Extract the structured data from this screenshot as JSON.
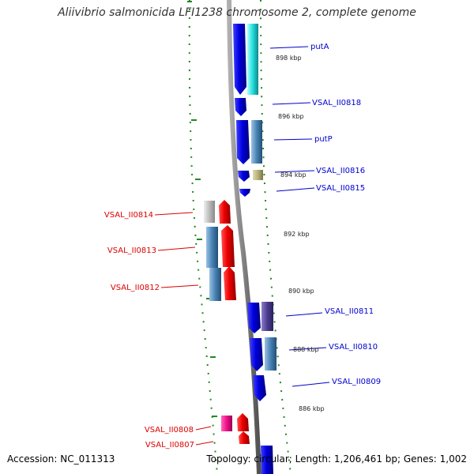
{
  "title": "Aliivibrio salmonicida LFI1238 chromosome 2, complete genome",
  "footer": {
    "accession": "Accession: NC_011313",
    "summary": "Topology: circular; Length: 1,206,461 bp; Genes: 1,002"
  },
  "colors": {
    "forward": "#0000dd",
    "reverse": "#ee0000",
    "reverse_pink": "#ee1188",
    "cyan": "#22dddd",
    "steel": "#4682b4",
    "purple": "#4b3c8c",
    "olive": "#b8b07a",
    "grey": "#b8b8b8",
    "backbone": "#808080",
    "dots": "#228822"
  },
  "ticks": [
    {
      "label": "898 kbp"
    },
    {
      "label": "896 kbp"
    },
    {
      "label": "894 kbp"
    },
    {
      "label": "892 kbp"
    },
    {
      "label": "890 kbp"
    },
    {
      "label": "888 kbp"
    },
    {
      "label": "886 kbp"
    }
  ],
  "genes_forward": [
    {
      "label": "putA"
    },
    {
      "label": "VSAL_II0818"
    },
    {
      "label": "putP"
    },
    {
      "label": "VSAL_II0816"
    },
    {
      "label": "VSAL_II0815"
    },
    {
      "label": "VSAL_II0811"
    },
    {
      "label": "VSAL_II0810"
    },
    {
      "label": "VSAL_II0809"
    }
  ],
  "genes_reverse": [
    {
      "label": "VSAL_II0814"
    },
    {
      "label": "VSAL_II0813"
    },
    {
      "label": "VSAL_II0812"
    },
    {
      "label": "VSAL_II0808"
    },
    {
      "label": "VSAL_II0807"
    }
  ]
}
